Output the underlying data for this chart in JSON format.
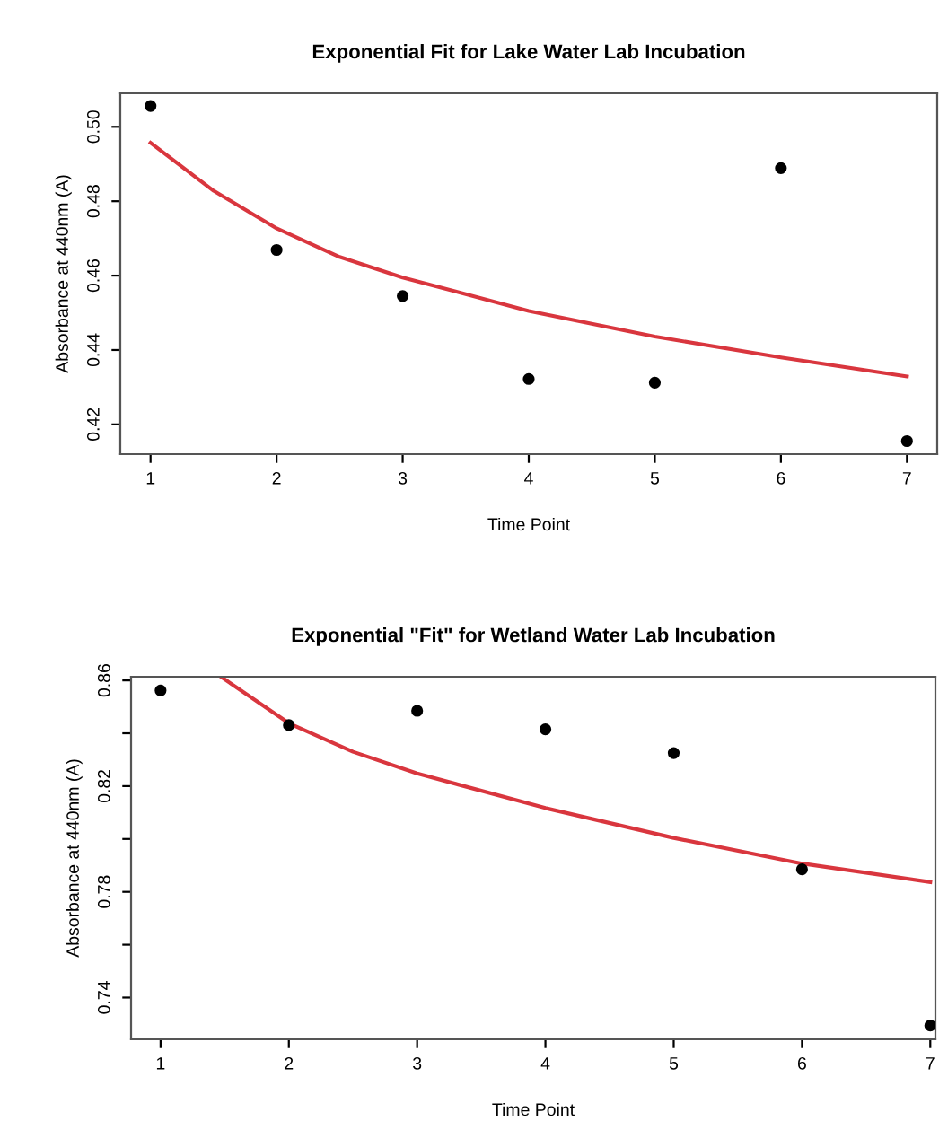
{
  "chart_data": [
    {
      "type": "scatter",
      "title": "Exponential Fit for Lake Water Lab Incubation",
      "xlabel": "Time Point",
      "ylabel": "Absorbance at 440nm (A)",
      "marker": "circle",
      "grid": false,
      "legend": false,
      "x": [
        1,
        2,
        3,
        4,
        5,
        6,
        7
      ],
      "series": [
        {
          "color": "#000000",
          "values": [
            0.5056,
            0.4669,
            0.4545,
            0.4322,
            0.4312,
            0.4889,
            0.4155
          ]
        },
        {
          "type": "line",
          "color": "#d9363e",
          "marker": "none",
          "x": [
            1,
            1.5,
            2,
            2.5,
            3,
            4,
            5,
            6,
            7
          ],
          "values": [
            0.4957,
            0.4828,
            0.4727,
            0.465,
            0.4595,
            0.4505,
            0.4436,
            0.438,
            0.4329
          ]
        }
      ],
      "xlim": [
        0.76,
        7.24
      ],
      "ylim": [
        0.412,
        0.509
      ],
      "xticks": [
        1,
        2,
        3,
        4,
        5,
        6,
        7
      ],
      "yticks": [
        {
          "value": 0.42,
          "label": "0.42"
        },
        {
          "value": 0.44,
          "label": "0.44"
        },
        {
          "value": 0.46,
          "label": "0.46"
        },
        {
          "value": 0.48,
          "label": "0.48"
        },
        {
          "value": 0.5,
          "label": "0.50"
        }
      ]
    },
    {
      "type": "scatter",
      "title": "Exponential \"Fit\" for Wetland Water Lab Incubation",
      "xlabel": "Time Point",
      "ylabel": "Absorbance at 440nm (A)",
      "marker": "circle",
      "grid": false,
      "legend": false,
      "x": [
        1,
        2,
        3,
        4,
        5,
        6,
        7
      ],
      "series": [
        {
          "color": "#000000",
          "values": [
            0.8562,
            0.8431,
            0.8485,
            0.8415,
            0.8325,
            0.7885,
            0.7294
          ]
        },
        {
          "type": "line",
          "color": "#d9363e",
          "marker": "none",
          "x": [
            1.47,
            2,
            2.5,
            3,
            4,
            5,
            6,
            7
          ],
          "values": [
            0.8614,
            0.8438,
            0.833,
            0.8248,
            0.8117,
            0.8004,
            0.7907,
            0.7837
          ]
        }
      ],
      "xlim": [
        0.77,
        7.04
      ],
      "ylim": [
        0.7242,
        0.8614
      ],
      "xticks": [
        1,
        2,
        3,
        4,
        5,
        6,
        7
      ],
      "yticks": [
        {
          "value": 0.74,
          "label": "0.74"
        },
        {
          "value": 0.76,
          "label": null
        },
        {
          "value": 0.78,
          "label": "0.78"
        },
        {
          "value": 0.8,
          "label": null
        },
        {
          "value": 0.82,
          "label": "0.82"
        },
        {
          "value": 0.84,
          "label": null
        },
        {
          "value": 0.86,
          "label": "0.86"
        }
      ]
    }
  ]
}
